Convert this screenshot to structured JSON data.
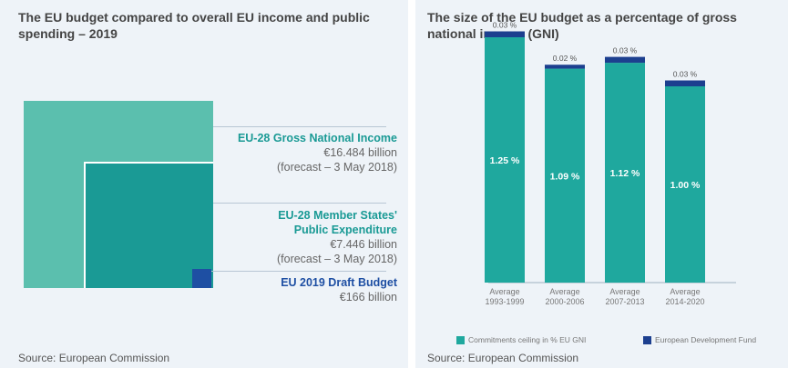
{
  "left": {
    "title": "The EU budget compared to overall EU income and public spending – 2019",
    "source": "Source: European Commission",
    "gni": {
      "label": "EU-28 Gross National Income",
      "value": "€16.484 billion",
      "note": "(forecast – 3 May 2018)"
    },
    "public_expenditure": {
      "label_line1": "EU-28 Member States'",
      "label_line2": "Public Expenditure",
      "value": "€7.446 billion",
      "note": "(forecast – 3 May 2018)"
    },
    "budget": {
      "label": "EU 2019 Draft Budget",
      "value": "€166 billion"
    }
  },
  "right": {
    "title": "The size of the EU budget as a percentage of gross national income (GNI)",
    "source": "Source: European Commission",
    "legend": {
      "commitments": "Commitments ceiling in % EU GNI",
      "edf": "European Development Fund"
    }
  },
  "colors": {
    "teal_light": "#5bbfae",
    "teal": "#1a9a95",
    "navy": "#1e4fa3",
    "bar_teal": "#1fa89e",
    "bar_navy": "#1c3f8f"
  },
  "chart_data": {
    "type": "bar",
    "stacked": true,
    "categories": [
      "Average 1993-1999",
      "Average 2000-2006",
      "Average 2007-2013",
      "Average 2014-2020"
    ],
    "category_lines": [
      [
        "Average",
        "1993-1999"
      ],
      [
        "Average",
        "2000-2006"
      ],
      [
        "Average",
        "2007-2013"
      ],
      [
        "Average",
        "2014-2020"
      ]
    ],
    "series": [
      {
        "name": "Commitments ceiling in % EU GNI",
        "values": [
          1.25,
          1.09,
          1.12,
          1.0
        ],
        "labels": [
          "1.25 %",
          "1.09 %",
          "1.12 %",
          "1.00 %"
        ],
        "color": "#1fa89e"
      },
      {
        "name": "European Development Fund",
        "values": [
          0.03,
          0.02,
          0.03,
          0.03
        ],
        "labels": [
          "0.03 %",
          "0.02 %",
          "0.03 %",
          "0.03 %"
        ],
        "color": "#1c3f8f"
      }
    ],
    "ylim": [
      0,
      1.3
    ],
    "grid": false,
    "legend_position": "bottom"
  }
}
